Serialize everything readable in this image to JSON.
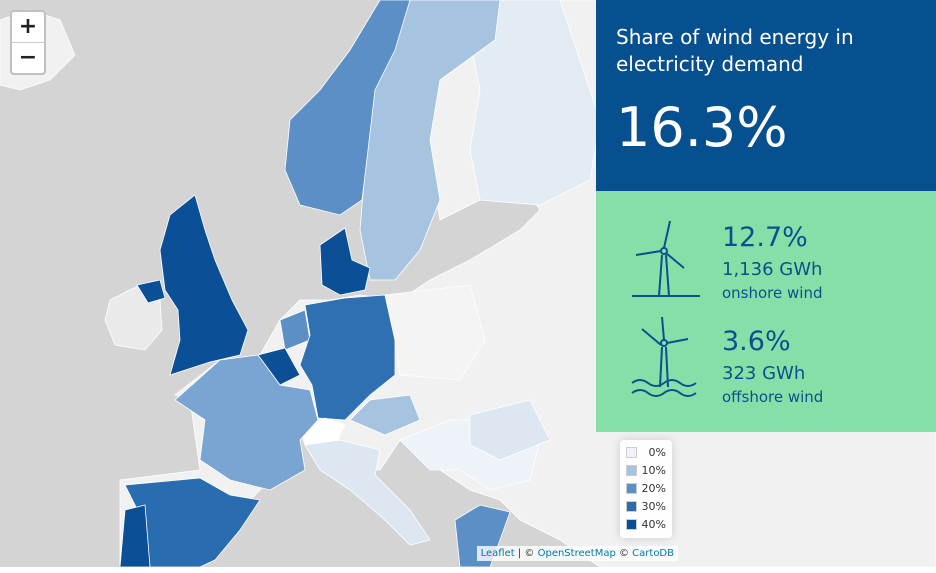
{
  "zoom_controls": {
    "zoom_in": "+",
    "zoom_out": "−"
  },
  "panel": {
    "title": "Share of wind energy in electricity demand",
    "total": "16.3%",
    "onshore": {
      "share": "12.7%",
      "energy": "1,136 GWh",
      "label": "onshore wind"
    },
    "offshore": {
      "share": "3.6%",
      "energy": "323 GWh",
      "label": "offshore wind"
    }
  },
  "legend": [
    {
      "label": "0%",
      "color": "#eef3f9"
    },
    {
      "label": "10%",
      "color": "#a6c4e0"
    },
    {
      "label": "20%",
      "color": "#5b8fc6"
    },
    {
      "label": "30%",
      "color": "#2a6cb0"
    },
    {
      "label": "40%",
      "color": "#0b4f96"
    }
  ],
  "attribution": {
    "leaflet": "Leaflet",
    "separator": "| ©",
    "osm": "OpenStreetMap",
    "copyright": "©",
    "carto": "CartoDB"
  }
}
